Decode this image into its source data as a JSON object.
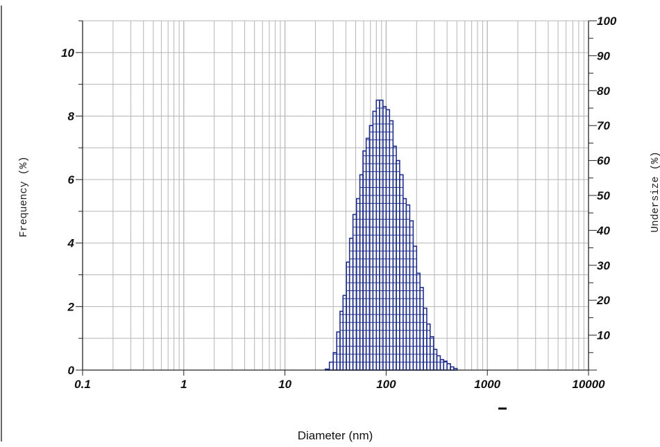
{
  "chart_data": {
    "type": "bar",
    "x_scale": "log",
    "xlim": [
      0.1,
      10000
    ],
    "ylim_left": [
      0,
      11
    ],
    "ylim_right": [
      0,
      100
    ],
    "grid": true,
    "xlabel": "Diameter (nm)",
    "ylabel": "Frequency (%)",
    "ylabel_right": "Undersize (%)",
    "x_tick_labels": [
      "0.1",
      "1",
      "10",
      "100",
      "1000",
      "10000"
    ],
    "y_tick_labels": [
      "0",
      "2",
      "4",
      "6",
      "8",
      "10"
    ],
    "y_right_tick_labels": [
      "10",
      "20",
      "30",
      "40",
      "50",
      "60",
      "70",
      "80",
      "90",
      "100"
    ],
    "bar_color": "#1f2e8c",
    "grid_color": "#b4b4b4",
    "bins": [
      {
        "x0": 25.0,
        "x1": 27.5,
        "y": 0.03
      },
      {
        "x0": 27.5,
        "x1": 30.0,
        "y": 0.25
      },
      {
        "x0": 30.0,
        "x1": 32.5,
        "y": 0.55
      },
      {
        "x0": 32.5,
        "x1": 35.0,
        "y": 1.2
      },
      {
        "x0": 35.0,
        "x1": 37.5,
        "y": 1.85
      },
      {
        "x0": 37.5,
        "x1": 40.5,
        "y": 2.35
      },
      {
        "x0": 40.5,
        "x1": 43.5,
        "y": 3.4
      },
      {
        "x0": 43.5,
        "x1": 47.0,
        "y": 4.15
      },
      {
        "x0": 47.0,
        "x1": 51.0,
        "y": 4.9
      },
      {
        "x0": 51.0,
        "x1": 55.0,
        "y": 5.4
      },
      {
        "x0": 55.0,
        "x1": 59.0,
        "y": 6.15
      },
      {
        "x0": 59.0,
        "x1": 63.5,
        "y": 6.9
      },
      {
        "x0": 63.5,
        "x1": 68.5,
        "y": 7.3
      },
      {
        "x0": 68.5,
        "x1": 74.0,
        "y": 7.7
      },
      {
        "x0": 74.0,
        "x1": 80.0,
        "y": 8.15
      },
      {
        "x0": 80.0,
        "x1": 86.0,
        "y": 8.5
      },
      {
        "x0": 86.0,
        "x1": 93.0,
        "y": 8.5
      },
      {
        "x0": 93.0,
        "x1": 100.0,
        "y": 8.3
      },
      {
        "x0": 100.0,
        "x1": 108.0,
        "y": 8.2
      },
      {
        "x0": 108.0,
        "x1": 117.0,
        "y": 7.85
      },
      {
        "x0": 117.0,
        "x1": 126.0,
        "y": 7.05
      },
      {
        "x0": 126.0,
        "x1": 136.0,
        "y": 6.6
      },
      {
        "x0": 136.0,
        "x1": 147.0,
        "y": 6.15
      },
      {
        "x0": 147.0,
        "x1": 158.0,
        "y": 5.4
      },
      {
        "x0": 158.0,
        "x1": 171.0,
        "y": 5.2
      },
      {
        "x0": 171.0,
        "x1": 185.0,
        "y": 4.7
      },
      {
        "x0": 185.0,
        "x1": 200.0,
        "y": 3.9
      },
      {
        "x0": 200.0,
        "x1": 216.0,
        "y": 3.05
      },
      {
        "x0": 216.0,
        "x1": 233.0,
        "y": 2.6
      },
      {
        "x0": 233.0,
        "x1": 252.0,
        "y": 1.95
      },
      {
        "x0": 252.0,
        "x1": 272.0,
        "y": 1.45
      },
      {
        "x0": 272.0,
        "x1": 294.0,
        "y": 1.05
      },
      {
        "x0": 294.0,
        "x1": 317.0,
        "y": 0.65
      },
      {
        "x0": 317.0,
        "x1": 343.0,
        "y": 0.45
      },
      {
        "x0": 343.0,
        "x1": 370.0,
        "y": 0.33
      },
      {
        "x0": 370.0,
        "x1": 400.0,
        "y": 0.28
      },
      {
        "x0": 400.0,
        "x1": 432.0,
        "y": 0.2
      },
      {
        "x0": 432.0,
        "x1": 466.0,
        "y": 0.1
      },
      {
        "x0": 466.0,
        "x1": 503.0,
        "y": 0.05
      }
    ]
  }
}
